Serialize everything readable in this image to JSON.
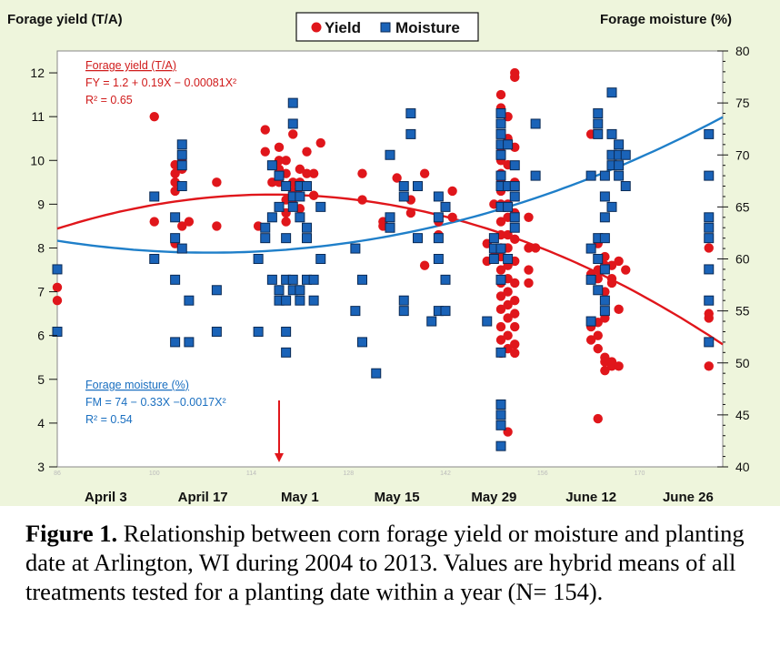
{
  "chart_data": {
    "type": "scatter",
    "left_axis_title": "Forage yield (T/A)",
    "right_axis_title": "Forage moisture (%)",
    "left_ylim": [
      3,
      12.5
    ],
    "left_yticks": [
      3,
      4,
      5,
      6,
      7,
      8,
      9,
      10,
      11,
      12
    ],
    "right_ylim": [
      40,
      80
    ],
    "right_yticks": [
      40,
      45,
      50,
      55,
      60,
      65,
      70,
      75,
      80
    ],
    "xlim": [
      86,
      182
    ],
    "x_minor_ticks": [
      86,
      100,
      114,
      128,
      142,
      156,
      170
    ],
    "x_date_labels": [
      {
        "x": 93,
        "label": "April 3"
      },
      {
        "x": 107,
        "label": "April 17"
      },
      {
        "x": 121,
        "label": "May 1"
      },
      {
        "x": 135,
        "label": "May 15"
      },
      {
        "x": 149,
        "label": "May 29"
      },
      {
        "x": 163,
        "label": "June 12"
      },
      {
        "x": 177,
        "label": "June 26"
      }
    ],
    "legend": {
      "placement": "top-center",
      "entries": [
        "Yield",
        "Moisture"
      ]
    },
    "colors": {
      "yield": "#e0161b",
      "moisture": "#1a63b8",
      "moisture_curve": "#1f7fc9",
      "panel_bg": "#eef5dc",
      "plot_bg": "#ffffff"
    },
    "arrow_x": 118,
    "yield_annotation": {
      "title": "Forage yield (T/A)",
      "equation": "FY = 1.2 + 0.19X − 0.00081X²",
      "r2": "R² = 0.65"
    },
    "moisture_annotation": {
      "title": "Forage moisture (%)",
      "equation": "FM = 74 − 0.33X −0.0017X²",
      "r2": "R² = 0.54"
    },
    "series": [
      {
        "name": "Yield",
        "marker": "circle",
        "points": [
          [
            86,
            7.1
          ],
          [
            86,
            6.8
          ],
          [
            100,
            11.0
          ],
          [
            100,
            8.6
          ],
          [
            103,
            9.9
          ],
          [
            103,
            9.7
          ],
          [
            103,
            9.5
          ],
          [
            103,
            9.3
          ],
          [
            103,
            8.7
          ],
          [
            103,
            8.1
          ],
          [
            104,
            10.0
          ],
          [
            104,
            9.8
          ],
          [
            104,
            8.5
          ],
          [
            105,
            8.6
          ],
          [
            109,
            9.5
          ],
          [
            109,
            8.5
          ],
          [
            115,
            8.5
          ],
          [
            116,
            10.7
          ],
          [
            116,
            10.2
          ],
          [
            117,
            9.5
          ],
          [
            118,
            10.3
          ],
          [
            118,
            10.0
          ],
          [
            118,
            9.8
          ],
          [
            118,
            9.5
          ],
          [
            119,
            10.0
          ],
          [
            119,
            9.7
          ],
          [
            119,
            9.1
          ],
          [
            119,
            8.8
          ],
          [
            119,
            8.6
          ],
          [
            120,
            10.6
          ],
          [
            120,
            9.5
          ],
          [
            120,
            9.3
          ],
          [
            120,
            9.0
          ],
          [
            121,
            9.8
          ],
          [
            121,
            9.5
          ],
          [
            121,
            9.2
          ],
          [
            121,
            8.9
          ],
          [
            122,
            10.2
          ],
          [
            122,
            9.7
          ],
          [
            123,
            9.7
          ],
          [
            123,
            9.2
          ],
          [
            124,
            10.4
          ],
          [
            130,
            9.7
          ],
          [
            130,
            9.1
          ],
          [
            133,
            8.6
          ],
          [
            133,
            8.5
          ],
          [
            135,
            9.6
          ],
          [
            137,
            9.1
          ],
          [
            137,
            8.8
          ],
          [
            139,
            9.7
          ],
          [
            139,
            7.6
          ],
          [
            141,
            8.3
          ],
          [
            141,
            8.6
          ],
          [
            143,
            9.3
          ],
          [
            143,
            8.7
          ],
          [
            148,
            7.7
          ],
          [
            148,
            8.1
          ],
          [
            149,
            9.0
          ],
          [
            149,
            7.8
          ],
          [
            150,
            11.5
          ],
          [
            150,
            11.2
          ],
          [
            150,
            10.3
          ],
          [
            150,
            10.0
          ],
          [
            150,
            9.7
          ],
          [
            150,
            9.5
          ],
          [
            150,
            9.3
          ],
          [
            150,
            9.0
          ],
          [
            150,
            8.6
          ],
          [
            150,
            8.3
          ],
          [
            150,
            8.0
          ],
          [
            150,
            7.8
          ],
          [
            150,
            7.5
          ],
          [
            150,
            7.2
          ],
          [
            150,
            6.9
          ],
          [
            150,
            6.6
          ],
          [
            150,
            6.2
          ],
          [
            150,
            5.9
          ],
          [
            150,
            5.6
          ],
          [
            151,
            11.0
          ],
          [
            151,
            10.5
          ],
          [
            151,
            9.9
          ],
          [
            151,
            9.4
          ],
          [
            151,
            9.0
          ],
          [
            151,
            8.7
          ],
          [
            151,
            8.3
          ],
          [
            151,
            8.0
          ],
          [
            151,
            7.6
          ],
          [
            151,
            7.3
          ],
          [
            151,
            7.0
          ],
          [
            151,
            6.7
          ],
          [
            151,
            6.4
          ],
          [
            151,
            6.0
          ],
          [
            151,
            5.7
          ],
          [
            151,
            3.8
          ],
          [
            152,
            12.0
          ],
          [
            152,
            11.9
          ],
          [
            152,
            10.3
          ],
          [
            152,
            9.5
          ],
          [
            152,
            8.8
          ],
          [
            152,
            8.2
          ],
          [
            152,
            7.7
          ],
          [
            152,
            7.2
          ],
          [
            152,
            6.8
          ],
          [
            152,
            6.5
          ],
          [
            152,
            6.2
          ],
          [
            152,
            5.8
          ],
          [
            152,
            5.6
          ],
          [
            154,
            8.7
          ],
          [
            154,
            8.0
          ],
          [
            154,
            7.5
          ],
          [
            154,
            7.2
          ],
          [
            155,
            8.0
          ],
          [
            163,
            10.6
          ],
          [
            163,
            7.4
          ],
          [
            163,
            7.3
          ],
          [
            163,
            6.2
          ],
          [
            163,
            5.9
          ],
          [
            164,
            8.1
          ],
          [
            164,
            7.5
          ],
          [
            164,
            7.3
          ],
          [
            164,
            6.3
          ],
          [
            164,
            6.0
          ],
          [
            164,
            5.7
          ],
          [
            164,
            4.1
          ],
          [
            165,
            7.8
          ],
          [
            165,
            7.6
          ],
          [
            165,
            7.0
          ],
          [
            165,
            6.8
          ],
          [
            165,
            6.4
          ],
          [
            165,
            5.5
          ],
          [
            165,
            5.4
          ],
          [
            165,
            5.2
          ],
          [
            166,
            7.6
          ],
          [
            166,
            7.3
          ],
          [
            166,
            7.2
          ],
          [
            166,
            5.4
          ],
          [
            166,
            5.3
          ],
          [
            167,
            7.7
          ],
          [
            167,
            6.6
          ],
          [
            167,
            5.3
          ],
          [
            168,
            7.5
          ],
          [
            180,
            8.0
          ],
          [
            180,
            6.5
          ],
          [
            180,
            6.4
          ],
          [
            180,
            5.3
          ]
        ]
      },
      {
        "name": "Moisture",
        "marker": "square",
        "points": [
          [
            86,
            59
          ],
          [
            86,
            53
          ],
          [
            100,
            66
          ],
          [
            100,
            60
          ],
          [
            103,
            62
          ],
          [
            103,
            58
          ],
          [
            103,
            52
          ],
          [
            103,
            64
          ],
          [
            104,
            71
          ],
          [
            104,
            70
          ],
          [
            104,
            69
          ],
          [
            104,
            67
          ],
          [
            104,
            61
          ],
          [
            105,
            56
          ],
          [
            105,
            52
          ],
          [
            109,
            57
          ],
          [
            109,
            53
          ],
          [
            115,
            60
          ],
          [
            115,
            53
          ],
          [
            116,
            62
          ],
          [
            116,
            63
          ],
          [
            117,
            69
          ],
          [
            117,
            64
          ],
          [
            117,
            58
          ],
          [
            118,
            68
          ],
          [
            118,
            65
          ],
          [
            118,
            57
          ],
          [
            118,
            56
          ],
          [
            119,
            67
          ],
          [
            119,
            62
          ],
          [
            119,
            58
          ],
          [
            119,
            56
          ],
          [
            119,
            53
          ],
          [
            119,
            51
          ],
          [
            120,
            75
          ],
          [
            120,
            73
          ],
          [
            120,
            66
          ],
          [
            120,
            65
          ],
          [
            120,
            58
          ],
          [
            120,
            57
          ],
          [
            121,
            67
          ],
          [
            121,
            66
          ],
          [
            121,
            64
          ],
          [
            121,
            57
          ],
          [
            121,
            56
          ],
          [
            122,
            67
          ],
          [
            122,
            63
          ],
          [
            122,
            62
          ],
          [
            122,
            58
          ],
          [
            123,
            58
          ],
          [
            123,
            56
          ],
          [
            124,
            65
          ],
          [
            124,
            60
          ],
          [
            129,
            61
          ],
          [
            129,
            55
          ],
          [
            130,
            58
          ],
          [
            130,
            52
          ],
          [
            132,
            49
          ],
          [
            134,
            70
          ],
          [
            134,
            64
          ],
          [
            134,
            63
          ],
          [
            136,
            67
          ],
          [
            136,
            66
          ],
          [
            136,
            56
          ],
          [
            136,
            55
          ],
          [
            137,
            74
          ],
          [
            137,
            72
          ],
          [
            138,
            67
          ],
          [
            138,
            62
          ],
          [
            140,
            54
          ],
          [
            141,
            66
          ],
          [
            141,
            64
          ],
          [
            141,
            62
          ],
          [
            141,
            60
          ],
          [
            141,
            55
          ],
          [
            142,
            58
          ],
          [
            142,
            55
          ],
          [
            142,
            65
          ],
          [
            148,
            54
          ],
          [
            149,
            62
          ],
          [
            149,
            61
          ],
          [
            149,
            60
          ],
          [
            150,
            74
          ],
          [
            150,
            73
          ],
          [
            150,
            72
          ],
          [
            150,
            71
          ],
          [
            150,
            70
          ],
          [
            150,
            68
          ],
          [
            150,
            67
          ],
          [
            150,
            65
          ],
          [
            150,
            61
          ],
          [
            150,
            58
          ],
          [
            150,
            51
          ],
          [
            150,
            46
          ],
          [
            150,
            45
          ],
          [
            150,
            44
          ],
          [
            150,
            42
          ],
          [
            151,
            71
          ],
          [
            151,
            67
          ],
          [
            151,
            65
          ],
          [
            151,
            60
          ],
          [
            152,
            69
          ],
          [
            152,
            67
          ],
          [
            152,
            66
          ],
          [
            152,
            64
          ],
          [
            152,
            63
          ],
          [
            155,
            73
          ],
          [
            155,
            68
          ],
          [
            163,
            68
          ],
          [
            163,
            61
          ],
          [
            163,
            58
          ],
          [
            163,
            54
          ],
          [
            164,
            74
          ],
          [
            164,
            73
          ],
          [
            164,
            72
          ],
          [
            164,
            62
          ],
          [
            164,
            60
          ],
          [
            164,
            57
          ],
          [
            165,
            68
          ],
          [
            165,
            66
          ],
          [
            165,
            64
          ],
          [
            165,
            62
          ],
          [
            165,
            59
          ],
          [
            165,
            56
          ],
          [
            165,
            55
          ],
          [
            166,
            76
          ],
          [
            166,
            72
          ],
          [
            166,
            70
          ],
          [
            166,
            69
          ],
          [
            166,
            65
          ],
          [
            167,
            71
          ],
          [
            167,
            70
          ],
          [
            167,
            69
          ],
          [
            167,
            68
          ],
          [
            168,
            70
          ],
          [
            168,
            67
          ],
          [
            180,
            72
          ],
          [
            180,
            68
          ],
          [
            180,
            64
          ],
          [
            180,
            63
          ],
          [
            180,
            62
          ],
          [
            180,
            59
          ],
          [
            180,
            56
          ],
          [
            180,
            52
          ]
        ]
      }
    ]
  },
  "caption": {
    "label": "Figure 1.",
    "text": " Relationship between corn forage yield or moisture and planting date at Arlington, WI during 2004 to 2013. Values are hybrid means of all treatments tested for a planting date within a year (N= 154)."
  }
}
